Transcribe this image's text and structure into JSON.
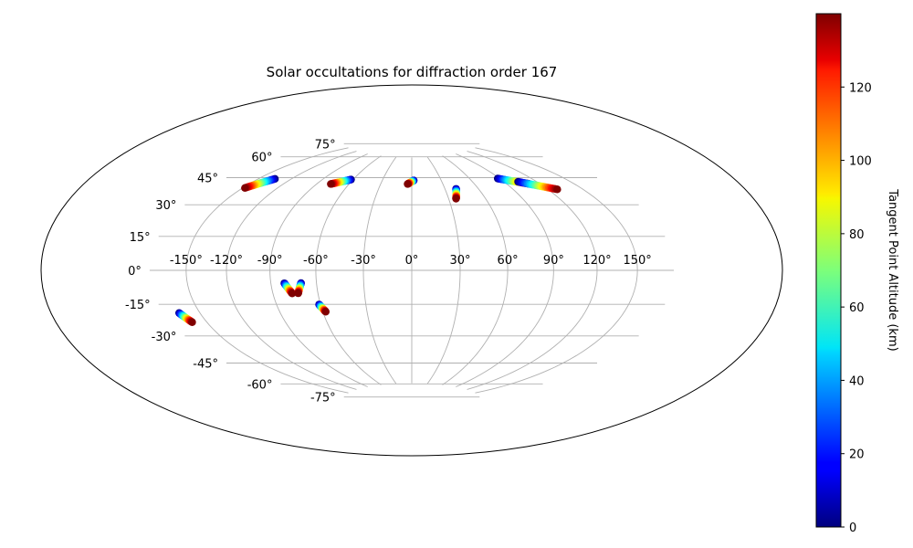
{
  "chart_data": {
    "type": "scatter",
    "projection": "hammer",
    "title": "Solar occultations for diffraction order 167",
    "xticks": [
      "-150°",
      "-120°",
      "-90°",
      "-60°",
      "-30°",
      "0°",
      "30°",
      "60°",
      "90°",
      "120°",
      "150°"
    ],
    "yticks": [
      "-75°",
      "-60°",
      "-45°",
      "-30°",
      "-15°",
      "0°",
      "15°",
      "30°",
      "45°",
      "60°",
      "75°"
    ],
    "grid": true,
    "colorbar": {
      "label": "Tangent Point Altitude (km)",
      "cmap": "jet",
      "range": [
        0,
        140
      ],
      "ticks": [
        "0",
        "20",
        "40",
        "60",
        "80",
        "100",
        "120"
      ]
    },
    "series": [
      {
        "lon": [
          -135,
          -148
        ],
        "lat": [
          51,
          43.5
        ],
        "alt": [
          0,
          140
        ]
      },
      {
        "lon": [
          -62,
          -77
        ],
        "lat": [
          57,
          53
        ],
        "alt": [
          0,
          140
        ]
      },
      {
        "lon": [
          2,
          -4
        ],
        "lat": [
          58,
          55.5
        ],
        "alt": [
          0,
          140
        ]
      },
      {
        "lon": [
          40,
          36
        ],
        "lat": [
          51.5,
          45
        ],
        "alt": [
          0,
          140
        ]
      },
      {
        "lon": [
          88,
          110
        ],
        "lat": [
          56,
          50.5
        ],
        "alt": [
          0,
          140
        ]
      },
      {
        "lon": [
          103,
          128
        ],
        "lat": [
          52.5,
          45
        ],
        "alt": [
          0,
          140
        ]
      },
      {
        "lon": [
          -81,
          -77
        ],
        "lat": [
          -7.5,
          -13.5
        ],
        "alt": [
          0,
          140
        ]
      },
      {
        "lon": [
          -70,
          -73
        ],
        "lat": [
          -7.5,
          -13.5
        ],
        "alt": [
          0,
          140
        ]
      },
      {
        "lon": [
          -61,
          -58
        ],
        "lat": [
          -20.5,
          -25
        ],
        "alt": [
          0,
          140
        ]
      },
      {
        "lon": [
          -167,
          -162
        ],
        "lat": [
          -20,
          -25
        ],
        "alt": [
          0,
          140
        ]
      }
    ]
  }
}
